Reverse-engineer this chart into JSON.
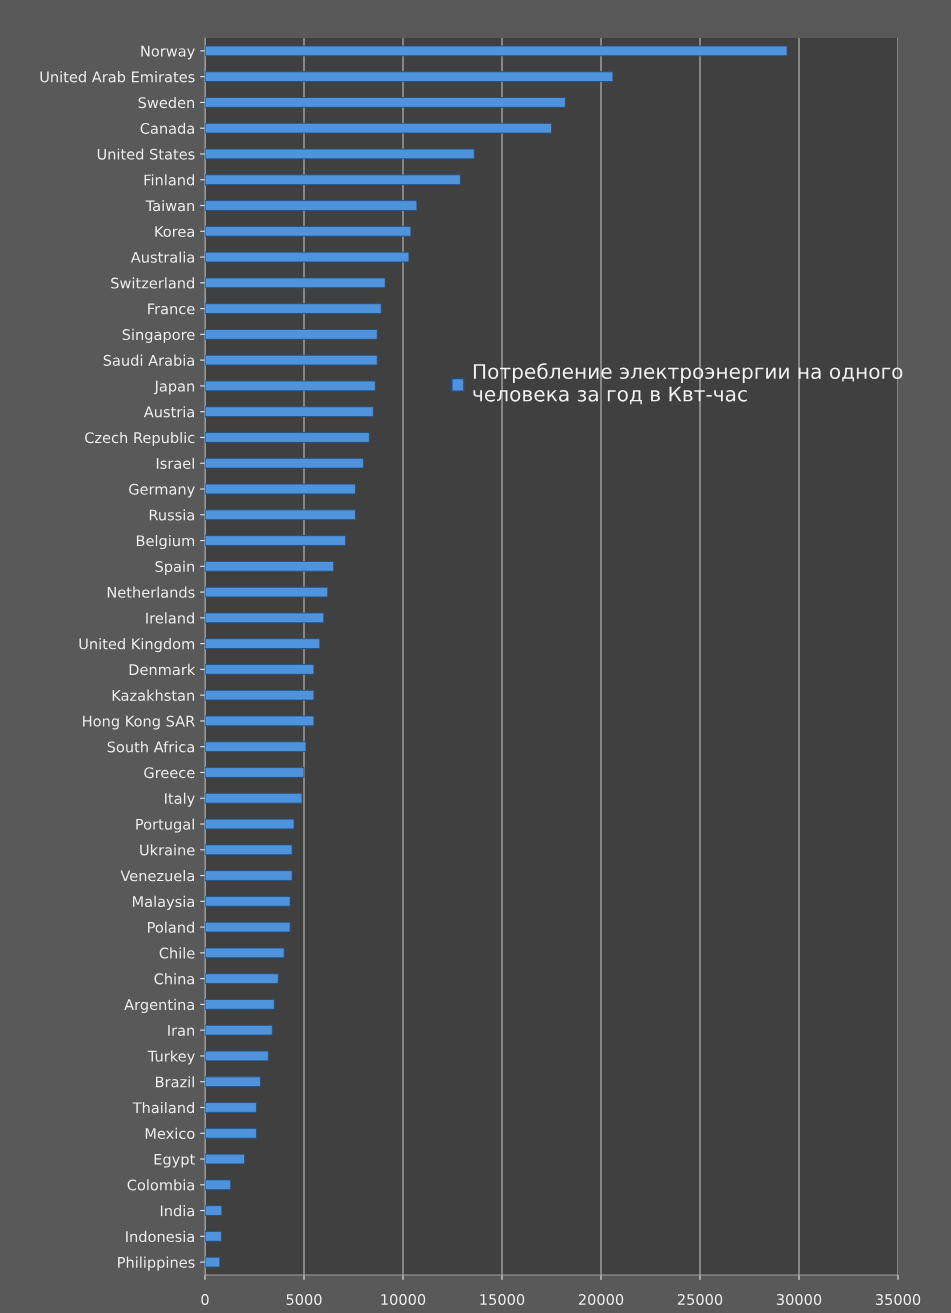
{
  "chart_data": {
    "type": "bar",
    "orientation": "horizontal",
    "categories": [
      "Norway",
      "United Arab Emirates",
      "Sweden",
      "Canada",
      "United States",
      "Finland",
      "Taiwan",
      "Korea",
      "Australia",
      "Switzerland",
      "France",
      "Singapore",
      "Saudi Arabia",
      "Japan",
      "Austria",
      "Czech Republic",
      "Israel",
      "Germany",
      "Russia",
      "Belgium",
      "Spain",
      "Netherlands",
      "Ireland",
      "United Kingdom",
      "Denmark",
      "Kazakhstan",
      "Hong Kong SAR",
      "South Africa",
      "Greece",
      "Italy",
      "Portugal",
      "Ukraine",
      "Venezuela",
      "Malaysia",
      "Poland",
      "Chile",
      "China",
      "Argentina",
      "Iran",
      "Turkey",
      "Brazil",
      "Thailand",
      "Mexico",
      "Egypt",
      "Colombia",
      "India",
      "Indonesia",
      "Philippines"
    ],
    "series": [
      {
        "name": "Потребление электроэнергии на одного человека за год в Квт-час",
        "color": "#4f93dc",
        "values": [
          29400,
          20600,
          18200,
          17500,
          13600,
          12900,
          10700,
          10400,
          10300,
          9100,
          8900,
          8700,
          8700,
          8600,
          8500,
          8300,
          8000,
          7600,
          7600,
          7100,
          6500,
          6200,
          6000,
          5800,
          5500,
          5500,
          5500,
          5100,
          5000,
          4900,
          4500,
          4400,
          4400,
          4300,
          4300,
          4000,
          3700,
          3500,
          3400,
          3200,
          2800,
          2600,
          2600,
          2000,
          1300,
          850,
          830,
          750
        ]
      }
    ],
    "xlim": [
      0,
      35000
    ],
    "xticks": [
      0,
      5000,
      10000,
      15000,
      20000,
      25000,
      30000,
      35000
    ],
    "grid": "x",
    "legend": "right"
  }
}
